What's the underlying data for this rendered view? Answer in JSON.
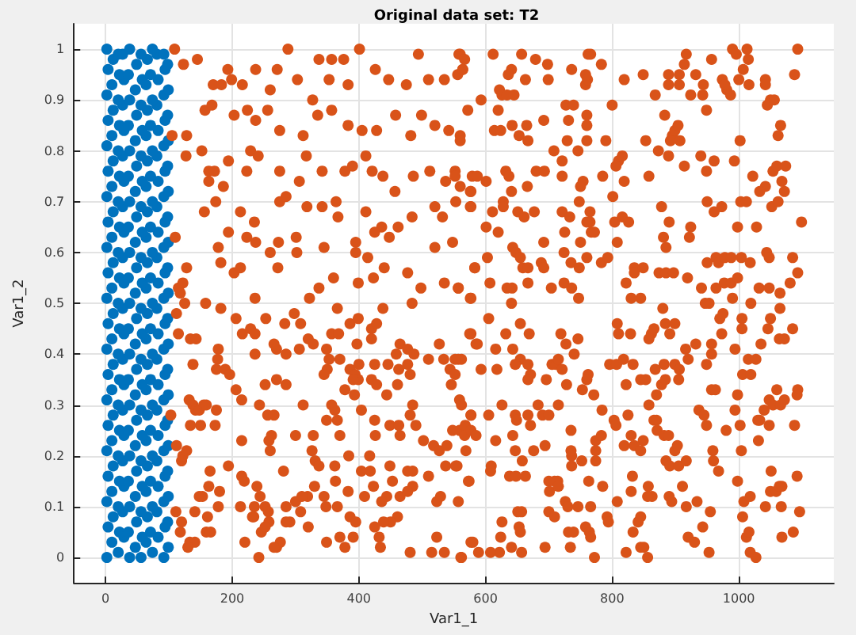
{
  "chart_data": {
    "type": "scatter",
    "title": "Original data set: T2",
    "xlabel": "Var1_1",
    "ylabel": "Var1_2",
    "xlim": [
      -50,
      1150
    ],
    "ylim": [
      -0.05,
      1.05
    ],
    "xticks": [
      0,
      200,
      400,
      600,
      800,
      1000
    ],
    "yticks": [
      0,
      0.1,
      0.2,
      0.3,
      0.4,
      0.5,
      0.6,
      0.7,
      0.8,
      0.9,
      1
    ],
    "grid": true,
    "marker": "circle",
    "series": [
      {
        "color": "#0072bd",
        "x": [
          2,
          20,
          38,
          56,
          74,
          92,
          10,
          29,
          47,
          64,
          83,
          99,
          4,
          22,
          36,
          58,
          71,
          94,
          12,
          27,
          49,
          66,
          81,
          98,
          2,
          20,
          38,
          56,
          74,
          92,
          10,
          29,
          47,
          64,
          83,
          99,
          4,
          22,
          36,
          58,
          71,
          94,
          12,
          27,
          49,
          66,
          81,
          98,
          2,
          20,
          38,
          56,
          74,
          92,
          10,
          29,
          47,
          64,
          83,
          99,
          4,
          22,
          36,
          58,
          71,
          94,
          12,
          27,
          49,
          66,
          81,
          98,
          2,
          20,
          38,
          56,
          74,
          92,
          10,
          29,
          47,
          64,
          83,
          99,
          4,
          22,
          36,
          58,
          71,
          94,
          12,
          27,
          49,
          66,
          81,
          98,
          2,
          20,
          38,
          56,
          74,
          92,
          10,
          29,
          47,
          64,
          83,
          99,
          4,
          22,
          36,
          58,
          71,
          94,
          12,
          27,
          49,
          66,
          81,
          98,
          2,
          20,
          38,
          56,
          74,
          92,
          10,
          29,
          47,
          64,
          83,
          99,
          4,
          22,
          36,
          58,
          71,
          94,
          12,
          27,
          49,
          66,
          81,
          98,
          2,
          20,
          38,
          56,
          74,
          92,
          10,
          29,
          47,
          64,
          83,
          99,
          4,
          22,
          36,
          58,
          71,
          94,
          12,
          27,
          49,
          66,
          81,
          98,
          2,
          20,
          38,
          56,
          74,
          92,
          10,
          29,
          47,
          64,
          83,
          99,
          4,
          22,
          36,
          58,
          71,
          94,
          12,
          27,
          49,
          66,
          81,
          98,
          2,
          20,
          38,
          56,
          74,
          92,
          10,
          29,
          47,
          64,
          83,
          99,
          4,
          22,
          36,
          58,
          71,
          94,
          12,
          27,
          49,
          66,
          81,
          98,
          2,
          20,
          38,
          56,
          74,
          92,
          10,
          29,
          47,
          64,
          83,
          99,
          4,
          22,
          36,
          58,
          71,
          94,
          12,
          27,
          49,
          66,
          81,
          98,
          2,
          20,
          38,
          56,
          74,
          92
        ],
        "values": [
          0,
          0.01,
          0,
          0,
          0.01,
          0,
          0.03,
          0.04,
          0.02,
          0.03,
          0.04,
          0.02,
          0.06,
          0.05,
          0.05,
          0.04,
          0.05,
          0.06,
          0.08,
          0.09,
          0.07,
          0.08,
          0.09,
          0.07,
          0.11,
          0.1,
          0.1,
          0.09,
          0.1,
          0.11,
          0.13,
          0.14,
          0.12,
          0.13,
          0.14,
          0.12,
          0.16,
          0.15,
          0.15,
          0.14,
          0.15,
          0.16,
          0.18,
          0.19,
          0.17,
          0.18,
          0.19,
          0.17,
          0.21,
          0.2,
          0.2,
          0.19,
          0.2,
          0.21,
          0.23,
          0.24,
          0.22,
          0.23,
          0.24,
          0.22,
          0.26,
          0.25,
          0.25,
          0.24,
          0.25,
          0.26,
          0.28,
          0.29,
          0.27,
          0.28,
          0.29,
          0.27,
          0.31,
          0.3,
          0.3,
          0.29,
          0.3,
          0.31,
          0.33,
          0.34,
          0.32,
          0.33,
          0.34,
          0.32,
          0.36,
          0.35,
          0.35,
          0.34,
          0.35,
          0.36,
          0.38,
          0.39,
          0.37,
          0.38,
          0.39,
          0.37,
          0.41,
          0.4,
          0.4,
          0.39,
          0.4,
          0.41,
          0.43,
          0.44,
          0.42,
          0.43,
          0.44,
          0.42,
          0.46,
          0.45,
          0.45,
          0.44,
          0.45,
          0.46,
          0.48,
          0.49,
          0.47,
          0.48,
          0.49,
          0.47,
          0.51,
          0.5,
          0.5,
          0.49,
          0.5,
          0.51,
          0.53,
          0.54,
          0.52,
          0.53,
          0.54,
          0.52,
          0.56,
          0.55,
          0.55,
          0.54,
          0.55,
          0.56,
          0.58,
          0.59,
          0.57,
          0.58,
          0.59,
          0.57,
          0.61,
          0.6,
          0.6,
          0.59,
          0.6,
          0.61,
          0.63,
          0.64,
          0.62,
          0.63,
          0.64,
          0.62,
          0.66,
          0.65,
          0.65,
          0.64,
          0.65,
          0.66,
          0.68,
          0.69,
          0.67,
          0.68,
          0.69,
          0.67,
          0.71,
          0.7,
          0.7,
          0.69,
          0.7,
          0.71,
          0.73,
          0.74,
          0.72,
          0.73,
          0.74,
          0.72,
          0.76,
          0.75,
          0.75,
          0.74,
          0.75,
          0.76,
          0.78,
          0.79,
          0.77,
          0.78,
          0.79,
          0.77,
          0.81,
          0.8,
          0.8,
          0.79,
          0.8,
          0.81,
          0.83,
          0.84,
          0.82,
          0.83,
          0.84,
          0.82,
          0.86,
          0.85,
          0.85,
          0.84,
          0.85,
          0.86,
          0.88,
          0.89,
          0.87,
          0.88,
          0.89,
          0.87,
          0.91,
          0.9,
          0.9,
          0.89,
          0.9,
          0.91,
          0.93,
          0.94,
          0.92,
          0.93,
          0.94,
          0.92,
          0.96,
          0.95,
          0.95,
          0.94,
          0.95,
          0.96,
          0.98,
          0.99,
          0.97,
          0.98,
          0.99,
          0.97,
          1,
          0.99,
          1,
          0.99,
          1,
          0.99
        ]
      },
      {
        "color": "#d95319",
        "x": [
          109,
          123,
          145,
          170,
          183,
          193,
          199,
          216,
          237,
          260,
          271,
          288,
          303,
          327,
          337,
          353,
          357,
          376,
          383,
          401,
          426,
          447,
          475,
          494,
          510,
          535,
          558,
          564,
          157,
          168,
          203,
          224,
          237,
          256,
          275,
          312,
          335,
          357,
          383,
          405,
          428,
          458,
          482,
          499,
          520,
          542,
          560,
          105,
          128,
          127,
          152,
          229,
          241,
          317,
          163,
          172,
          194,
          223,
          275,
          306,
          342,
          378,
          390,
          411,
          421,
          438,
          457,
          486,
          512,
          537,
          552,
          576,
          163,
          186,
          156,
          174,
          213,
          235,
          275,
          285,
          318,
          342,
          364,
          367,
          411,
          436,
          462,
          484,
          520,
          532,
          553,
          576,
          110,
          194,
          223,
          237,
          273,
          301,
          345,
          395,
          425,
          448,
          520,
          548,
          178,
          182,
          128,
          122,
          115,
          203,
          213,
          260,
          272,
          302,
          337,
          360,
          395,
          414,
          399,
          423,
          440,
          477,
          498,
          535,
          557,
          583,
          158,
          182,
          236,
          298,
          322,
          366,
          438,
          484,
          576,
          118,
          125,
          112,
          115,
          134,
          143,
          138,
          178,
          177,
          175,
          189,
          196,
          206,
          215,
          206,
          216,
          229,
          236,
          253,
          236,
          266,
          270,
          285,
          283,
          308,
          306,
          320,
          328,
          349,
          357,
          368,
          386,
          399,
          420,
          428,
          397,
          420,
          353,
          370,
          350,
          345,
          386,
          400,
          394,
          399,
          391,
          378,
          393,
          420,
          428,
          425,
          446,
          459,
          465,
          477,
          487,
          463,
          477,
          481,
          461,
          444,
          510,
          534,
          557,
          562,
          544,
          552,
          546,
          577,
          585,
          527,
          103,
          132,
          138,
          142,
          148,
          155,
          134,
          150,
          173,
          175,
          159,
          215,
          243,
          256,
          266,
          262,
          258,
          260,
          285,
          252,
          270,
          312,
          300,
          328,
          357,
          362,
          366,
          370,
          349,
          326,
          331,
          337,
          384,
          362,
          363,
          404,
          418,
          417,
          426,
          425,
          404,
          449,
          463,
          465,
          485,
          481,
          490,
          502,
          518,
          527,
          539,
          559,
          577,
          559,
          569,
          555,
          574,
          537,
          510,
          485,
          477,
          449,
          453,
          485,
          465,
          477,
          423,
          444,
          436,
          461,
          450,
          439,
          425,
          432,
          434,
          481,
          515,
          535,
          523,
          523,
          529,
          557,
          561,
          577,
          345,
          330,
          348,
          366,
          383,
          386,
          395,
          409,
          370,
          378,
          349,
          391,
          320,
          308,
          319,
          300,
          285,
          291,
          285,
          270,
          276,
          266,
          252,
          257,
          258,
          246,
          252,
          244,
          235,
          234,
          242,
          213,
          232,
          220,
          194,
          180,
          178,
          163,
          148,
          153,
          141,
          161,
          159,
          166,
          133,
          141,
          130,
          120,
          118,
          111,
          120,
          122,
          128,
          112,
          165,
          219,
          215,
          239,
          281,
          310,
          560,
          567,
          556,
          564,
          612,
          657,
          679,
          698,
          641,
          636,
          663,
          699,
          736,
          758,
          762,
          766,
          783,
          758,
          761,
          819,
          849,
          889,
          889,
          906,
          906,
          917,
          914,
          932,
          944,
          943,
          957,
          990,
          996,
          1013,
          1015,
          1007,
          974,
          981,
          987,
          978,
          1000,
          1016,
          1042,
          1042,
          1093,
          1088,
          924,
          868,
          622,
          626,
          634,
          645,
          593,
          620,
          642,
          665,
          692,
          727,
          739,
          731,
          760,
          760,
          800,
          760,
          790,
          729,
          708,
          746,
          721,
          614,
          624,
          653,
          667,
          560,
          572,
          883,
          895,
          899,
          904,
          853,
          892,
          907,
          873,
          889,
          949,
          940,
          961,
          1002,
          993,
          1045,
          1050,
          1056,
          1066,
          1062,
          560,
          552,
          579,
          587,
          601,
          577,
          632,
          637,
          666,
          680,
          693,
          641,
          721,
          754,
          750,
          785,
          810,
          816,
          806,
          819,
          858,
          914,
          949,
          1022,
          1054,
          1060,
          1074,
          1042,
          1068,
          1033,
          1072,
          1003,
          1012,
          1052,
          1062,
          950,
          961,
          973,
          878,
          890,
          924,
          922,
          998,
          1028,
          1099,
          577,
          611,
          628,
          628,
          651,
          661,
          677,
          721,
          733,
          748,
          765,
          765,
          760,
          801,
          804,
          816,
          826,
          601,
          620,
          725,
          767,
          692,
          750,
          772,
          808,
          881,
          885,
          603,
          643,
          648,
          655,
          659,
          667,
          688,
          692,
          724,
          735,
          760,
          783,
          793,
          748,
          557,
          583,
          607,
          634,
          642,
          667,
          704,
          724,
          736,
          835,
          835,
          849,
          822,
          845,
          874,
          885,
          897,
          919,
          950,
          964,
          968,
          978,
          988,
          1004,
          1018,
          1044,
          1048,
          1085,
          1093,
          1081,
          977,
          988,
          998,
          941,
          964,
          1032,
          1048,
          1065,
          990,
          1065,
          953,
          1019,
          577,
          641,
          747,
          830,
          880,
          947,
          605,
          575,
          587,
          616,
          632,
          643,
          655,
          669,
          552,
          593,
          618,
          655,
          647,
          667,
          671,
          667,
          696,
          705,
          711,
          715,
          721,
          719,
          727,
          740,
          746,
          762,
          760,
          728,
          753,
          771,
          808,
          810,
          829,
          796,
          807,
          818,
          833,
          822,
          845,
          853,
          862,
          866,
          858,
          884,
          899,
          891,
          868,
          882,
          899,
          906,
          870,
          878,
          884,
          905,
          916,
          920,
          932,
          949,
          957,
          957,
          970,
          975,
          973,
          994,
          1005,
          1005,
          1015,
          1027,
          1035,
          1050,
          1046,
          1064,
          1072,
          1085,
          957,
          963,
          1006,
          1019,
          998,
          1060,
          1093,
          1092,
          562,
          577,
          626,
          605,
          647,
          649,
          667,
          683,
          690,
          700,
          715,
          671,
          548,
          568,
          567,
          577,
          585,
          616,
          643,
          735,
          774,
          783,
          784,
          803,
          806,
          825,
          858,
          866,
          870,
          871,
          882,
          889,
          899,
          830,
          849,
          819,
          835,
          845,
          937,
          945,
          949,
          994,
          1002,
          980,
          1030,
          1033,
          1040,
          1048,
          1054,
          1048,
          1031,
          1066,
          1072,
          1088,
          1004,
          959,
          960,
          968,
          998,
          573,
          553,
          609,
          608,
          638,
          648,
          663,
          647,
          658,
          676,
          694,
          700,
          709,
          714,
          701,
          715,
          736,
          736,
          752,
          763,
          774,
          774,
          735,
          785,
          808,
          832,
          830,
          857,
          863,
          856,
          890,
          894,
          911,
          917,
          934,
          885,
          891,
          905,
          917,
          903,
          955,
          943,
          920,
          930,
          953,
          841,
          845,
          833,
          822,
          845,
          850,
          856,
          792,
          794,
          772,
          758,
          764,
          766,
          731,
          739,
          734,
          726,
          730,
          746,
          766,
          700,
          709,
          694,
          651,
          657,
          653,
          655,
          657,
          641,
          626,
          624,
          622,
          608,
          589,
          580,
          562,
          1006,
          1008,
          1018,
          1012,
          1016,
          1018,
          1027,
          1042,
          1050,
          1051,
          1059,
          1064,
          1068,
          1067,
          1068,
          1086,
          1092,
          1096
        ],
        "values": [
          1,
          0.97,
          0.98,
          0.93,
          0.93,
          0.96,
          0.94,
          0.93,
          0.96,
          0.92,
          0.96,
          1,
          0.94,
          0.9,
          0.98,
          0.94,
          0.98,
          0.98,
          0.93,
          1,
          0.96,
          0.94,
          0.93,
          0.99,
          0.94,
          0.94,
          0.99,
          0.96,
          0.88,
          0.89,
          0.87,
          0.88,
          0.86,
          0.88,
          0.84,
          0.83,
          0.87,
          0.88,
          0.85,
          0.84,
          0.84,
          0.87,
          0.83,
          0.87,
          0.85,
          0.84,
          0.83,
          0.83,
          0.83,
          0.79,
          0.8,
          0.8,
          0.79,
          0.79,
          0.76,
          0.76,
          0.78,
          0.76,
          0.76,
          0.74,
          0.76,
          0.76,
          0.77,
          0.79,
          0.76,
          0.75,
          0.72,
          0.75,
          0.76,
          0.74,
          0.76,
          0.72,
          0.74,
          0.73,
          0.68,
          0.7,
          0.68,
          0.66,
          0.7,
          0.71,
          0.69,
          0.69,
          0.7,
          0.67,
          0.68,
          0.65,
          0.65,
          0.67,
          0.69,
          0.67,
          0.7,
          0.69,
          0.63,
          0.64,
          0.63,
          0.62,
          0.62,
          0.63,
          0.61,
          0.62,
          0.64,
          0.63,
          0.61,
          0.62,
          0.61,
          0.58,
          0.57,
          0.54,
          0.53,
          0.56,
          0.57,
          0.6,
          0.57,
          0.6,
          0.53,
          0.55,
          0.6,
          0.59,
          0.54,
          0.55,
          0.57,
          0.56,
          0.53,
          0.54,
          0.53,
          0.57,
          0.5,
          0.49,
          0.51,
          0.48,
          0.51,
          0.49,
          0.49,
          0.5,
          0.51,
          0.52,
          0.5,
          0.48,
          0.44,
          0.43,
          0.43,
          0.38,
          0.41,
          0.39,
          0.37,
          0.37,
          0.36,
          0.33,
          0.31,
          0.47,
          0.44,
          0.45,
          0.44,
          0.47,
          0.4,
          0.42,
          0.41,
          0.4,
          0.46,
          0.46,
          0.41,
          0.43,
          0.42,
          0.41,
          0.44,
          0.44,
          0.46,
          0.47,
          0.45,
          0.46,
          0.42,
          0.43,
          0.39,
          0.39,
          0.37,
          0.36,
          0.37,
          0.38,
          0.36,
          0.35,
          0.35,
          0.33,
          0.32,
          0.35,
          0.34,
          0.38,
          0.38,
          0.4,
          0.42,
          0.41,
          0.4,
          0.37,
          0.38,
          0.36,
          0.34,
          0.32,
          0.39,
          0.39,
          0.39,
          0.39,
          0.37,
          0.36,
          0.34,
          0.44,
          0.42,
          0.42,
          0.28,
          0.31,
          0.3,
          0.29,
          0.29,
          0.3,
          0.26,
          0.26,
          0.26,
          0.29,
          0.3,
          0.23,
          0.3,
          0.28,
          0.28,
          0.24,
          0.23,
          0.21,
          0.34,
          0.34,
          0.35,
          0.3,
          0.24,
          0.24,
          0.3,
          0.29,
          0.27,
          0.24,
          0.27,
          0.21,
          0.19,
          0.18,
          0.2,
          0.18,
          0.15,
          0.17,
          0.17,
          0.2,
          0.24,
          0.27,
          0.29,
          0.26,
          0.26,
          0.24,
          0.3,
          0.28,
          0.26,
          0.23,
          0.22,
          0.21,
          0.22,
          0.31,
          0.28,
          0.25,
          0.21,
          0.18,
          0.15,
          0.18,
          0.16,
          0.17,
          0.17,
          0.18,
          0.15,
          0.14,
          0.12,
          0.13,
          0.14,
          0.12,
          0.11,
          0.08,
          0.07,
          0.07,
          0.06,
          0.04,
          0.02,
          0.01,
          0.01,
          0.01,
          0.04,
          0.11,
          0.12,
          0.11,
          0,
          0.03,
          0.12,
          0.14,
          0.1,
          0.1,
          0.13,
          0.08,
          0.07,
          0.12,
          0.04,
          0.02,
          0.03,
          0.04,
          0.06,
          0.09,
          0.12,
          0.11,
          0.1,
          0.07,
          0.07,
          0.02,
          0.03,
          0.02,
          0.1,
          0.09,
          0.07,
          0.05,
          0.06,
          0.12,
          0.1,
          0.08,
          0,
          0.1,
          0.08,
          0.03,
          0.18,
          0.13,
          0.1,
          0.14,
          0.12,
          0.12,
          0.09,
          0.08,
          0.05,
          0.05,
          0.03,
          0.03,
          0.02,
          0.07,
          0.05,
          0.09,
          0.19,
          0.2,
          0.21,
          0.22,
          0.17,
          0.15,
          0.16,
          0.14,
          0.17,
          0.12,
          0.99,
          0.98,
          0.95,
          0.96,
          0.99,
          0.99,
          0.98,
          0.97,
          0.96,
          0.95,
          0.94,
          0.94,
          0.96,
          0.95,
          0.99,
          0.99,
          0.97,
          0.93,
          0.94,
          0.94,
          0.95,
          0.95,
          0.93,
          0.95,
          0.93,
          0.99,
          0.97,
          0.95,
          0.93,
          0.91,
          0.98,
          1,
          0.99,
          1,
          0.98,
          0.96,
          0.94,
          0.92,
          0.91,
          0.93,
          0.94,
          0.93,
          0.94,
          0.93,
          1,
          0.95,
          0.91,
          0.91,
          0.92,
          0.91,
          0.91,
          0.91,
          0.9,
          0.88,
          0.85,
          0.85,
          0.86,
          0.89,
          0.89,
          0.86,
          0.87,
          0.85,
          0.89,
          0.82,
          0.82,
          0.82,
          0.8,
          0.8,
          0.78,
          0.84,
          0.84,
          0.83,
          0.82,
          0.82,
          0.88,
          0.87,
          0.83,
          0.84,
          0.85,
          0.82,
          0.82,
          0.82,
          0.8,
          0.79,
          0.88,
          0.79,
          0.78,
          0.82,
          0.78,
          0.89,
          0.9,
          0.9,
          0.85,
          0.83,
          0.73,
          0.75,
          0.75,
          0.75,
          0.74,
          0.72,
          0.76,
          0.75,
          0.73,
          0.76,
          0.76,
          0.72,
          0.75,
          0.74,
          0.73,
          0.75,
          0.78,
          0.79,
          0.77,
          0.74,
          0.75,
          0.77,
          0.76,
          0.75,
          0.76,
          0.77,
          0.77,
          0.73,
          0.74,
          0.72,
          0.72,
          0.7,
          0.7,
          0.69,
          0.7,
          0.7,
          0.68,
          0.69,
          0.69,
          0.66,
          0.65,
          0.63,
          0.65,
          0.65,
          0.66,
          0.69,
          0.68,
          0.7,
          0.69,
          0.68,
          0.67,
          0.68,
          0.68,
          0.67,
          0.7,
          0.68,
          0.66,
          0.66,
          0.71,
          0.66,
          0.67,
          0.66,
          0.65,
          0.64,
          0.64,
          0.64,
          0.62,
          0.62,
          0.64,
          0.62,
          0.63,
          0.61,
          0.59,
          0.61,
          0.6,
          0.59,
          0.57,
          0.57,
          0.58,
          0.57,
          0.6,
          0.58,
          0.59,
          0.58,
          0.59,
          0.57,
          0.53,
          0.57,
          0.54,
          0.53,
          0.53,
          0.54,
          0.53,
          0.54,
          0.53,
          0.57,
          0.56,
          0.57,
          0.54,
          0.51,
          0.56,
          0.56,
          0.56,
          0.55,
          0.58,
          0.59,
          0.58,
          0.59,
          0.59,
          0.59,
          0.58,
          0.6,
          0.59,
          0.59,
          0.56,
          0.54,
          0.54,
          0.54,
          0.55,
          0.53,
          0.53,
          0.53,
          0.53,
          0.52,
          0.51,
          0.49,
          0.5,
          0.5,
          0.51,
          0.5,
          0.51,
          0.51,
          0.49,
          0.5,
          0.47,
          0.44,
          0.42,
          0.41,
          0.44,
          0.41,
          0.46,
          0.44,
          0.39,
          0.37,
          0.37,
          0.39,
          0.38,
          0.38,
          0.36,
          0.35,
          0.35,
          0.38,
          0.38,
          0.39,
          0.37,
          0.44,
          0.42,
          0.4,
          0.43,
          0.36,
          0.35,
          0.34,
          0.33,
          0.32,
          0.46,
          0.44,
          0.44,
          0.38,
          0.38,
          0.39,
          0.38,
          0.34,
          0.35,
          0.35,
          0.44,
          0.45,
          0.43,
          0.46,
          0.46,
          0.44,
          0.37,
          0.38,
          0.38,
          0.37,
          0.32,
          0.34,
          0.35,
          0.35,
          0.41,
          0.39,
          0.42,
          0.38,
          0.4,
          0.42,
          0.47,
          0.48,
          0.44,
          0.41,
          0.47,
          0.45,
          0.39,
          0.39,
          0.42,
          0.47,
          0.45,
          0.43,
          0.43,
          0.45,
          0.33,
          0.33,
          0.36,
          0.36,
          0.32,
          0.33,
          0.33,
          0.32,
          0.3,
          0.28,
          0.3,
          0.28,
          0.28,
          0.27,
          0.28,
          0.3,
          0.28,
          0.28,
          0.3,
          0.26,
          0.25,
          0.26,
          0.24,
          0.25,
          0.24,
          0.23,
          0.24,
          0.25,
          0.23,
          0.24,
          0.29,
          0.27,
          0.26,
          0.28,
          0.3,
          0.27,
          0.27,
          0.25,
          0.24,
          0.24,
          0.21,
          0.24,
          0.23,
          0.22,
          0.22,
          0.21,
          0.29,
          0.28,
          0.26,
          0.29,
          0.26,
          0.25,
          0.27,
          0.27,
          0.29,
          0.31,
          0.3,
          0.26,
          0.23,
          0.3,
          0.31,
          0.26,
          0.21,
          0.21,
          0.19,
          0.17,
          0.15,
          0.15,
          0.18,
          0.18,
          0.17,
          0.16,
          0.16,
          0.16,
          0.21,
          0.19,
          0.21,
          0.22,
          0.15,
          0.15,
          0.15,
          0.13,
          0.14,
          0.2,
          0.18,
          0.19,
          0.15,
          0.21,
          0.19,
          0.21,
          0.14,
          0.11,
          0.16,
          0.13,
          0.14,
          0.12,
          0.12,
          0.12,
          0.11,
          0.14,
          0.1,
          0.11,
          0.19,
          0.18,
          0.18,
          0.19,
          0.22,
          0.09,
          0.06,
          0.04,
          0.03,
          0.01,
          0.07,
          0.08,
          0.05,
          0.01,
          0.02,
          0.02,
          0,
          0.08,
          0.07,
          0,
          0.06,
          0.05,
          0.04,
          0.05,
          0.05,
          0.02,
          0.11,
          0.1,
          0.1,
          0.1,
          0.09,
          0.08,
          0.02,
          0.09,
          0.09,
          0.06,
          0.05,
          0.01,
          0.02,
          0.07,
          0.04,
          0.01,
          0.01,
          0.01,
          0.03,
          0,
          0.08,
          0.11,
          0.12,
          0.04,
          0.05,
          0.01,
          0,
          0.1,
          0.13,
          0.17,
          0.13,
          0.14,
          0.14,
          0.1,
          0.04,
          0.05,
          0.16,
          0.09
        ]
      }
    ]
  }
}
